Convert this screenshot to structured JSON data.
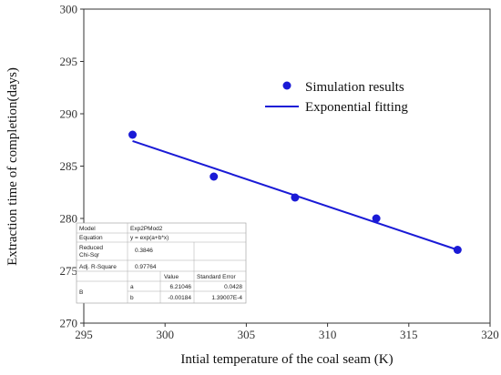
{
  "chart_data": {
    "type": "scatter",
    "xlabel": "Intial temperature of the coal seam (K)",
    "ylabel": "Extraction time of completion(days)",
    "xlim": [
      295,
      320
    ],
    "ylim": [
      270,
      300
    ],
    "x_ticks": [
      "295",
      "300",
      "305",
      "310",
      "315",
      "320"
    ],
    "y_ticks": [
      "270",
      "275",
      "280",
      "285",
      "290",
      "295",
      "300"
    ],
    "grid": false,
    "legend_position": "upper-right",
    "series": [
      {
        "name": "Simulation results",
        "kind": "scatter",
        "color": "#1a1ad6",
        "x": [
          298,
          303,
          308,
          313,
          318
        ],
        "y": [
          288,
          284,
          282,
          280,
          277
        ]
      },
      {
        "name": "Exponential fitting",
        "kind": "line",
        "color": "#1a1ad6",
        "model": "y = exp(a+b*x)",
        "a": 6.21046,
        "b": -0.00184,
        "x_range": [
          298,
          318
        ]
      }
    ],
    "fit_table": {
      "model_label": "Model",
      "model_value": "Exp2PMod2",
      "equation_label": "Equation",
      "equation_value": "y = exp(a+b*x)",
      "chi_label": "Reduced Chi-Sqr",
      "chi_value": "0.3846",
      "r2_label": "Adj. R-Square",
      "r2_value": "0.97764",
      "value_header": "Value",
      "error_header": "Standard Error",
      "param_group": "B",
      "params": [
        {
          "name": "a",
          "value": "6.21046",
          "error": "0.0428"
        },
        {
          "name": "b",
          "value": "-0.00184",
          "error": "1.39007E-4"
        }
      ]
    }
  }
}
